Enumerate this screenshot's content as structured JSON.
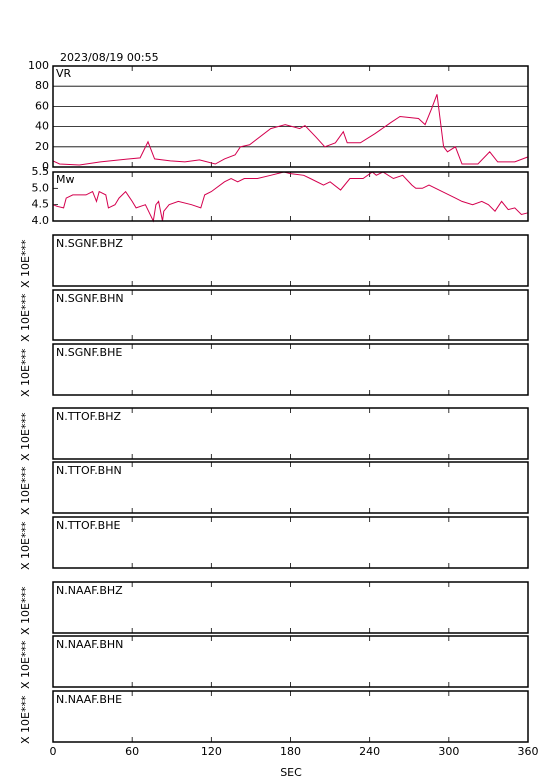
{
  "date": "2023/08/19 00:55",
  "shared_x": {
    "xlabel": "SEC",
    "xlim": [
      0,
      360
    ],
    "xticks": [
      0,
      60,
      120,
      180,
      240,
      300,
      360
    ]
  },
  "chart_data": [
    {
      "type": "line",
      "grid": true,
      "ylim": [
        0,
        100
      ],
      "yticks": [
        0,
        20,
        40,
        60,
        80,
        100
      ],
      "x": [
        0,
        5,
        20,
        36,
        58,
        66,
        72,
        77,
        89,
        100,
        111,
        123,
        130,
        138,
        142,
        149,
        165,
        176,
        187,
        191,
        199,
        206,
        214,
        220,
        223,
        233,
        244,
        256,
        263,
        277,
        282,
        287,
        291,
        296,
        299,
        305,
        310,
        322,
        331,
        337,
        350,
        360
      ],
      "series": [
        {
          "name": "VR",
          "color": "#d4004e",
          "values": [
            6,
            3,
            2,
            5,
            8,
            9,
            25,
            8,
            6,
            5,
            7,
            3,
            8,
            12,
            20,
            22,
            38,
            42,
            38,
            41,
            30,
            20,
            24,
            35,
            24,
            24,
            33,
            44,
            50,
            48,
            42,
            58,
            72,
            20,
            15,
            20,
            3,
            3,
            15,
            5,
            5,
            10
          ]
        }
      ]
    },
    {
      "type": "line",
      "grid": false,
      "ylim": [
        4,
        5.5
      ],
      "yticks": [
        {
          "value": 4,
          "label": "4.0"
        },
        4.5,
        {
          "value": 5,
          "label": "5.0"
        },
        5.5
      ],
      "x": [
        0,
        3,
        8,
        10,
        15,
        25,
        30,
        33,
        35,
        40,
        42,
        47,
        50,
        55,
        60,
        63,
        70,
        76,
        78,
        80,
        83,
        84,
        88,
        95,
        105,
        112,
        115,
        120,
        130,
        135,
        140,
        145,
        155,
        165,
        175,
        180,
        190,
        195,
        205,
        210,
        218,
        225,
        235,
        242,
        245,
        250,
        258,
        265,
        272,
        275,
        280,
        285,
        295,
        305,
        310,
        318,
        325,
        330,
        335,
        340,
        345,
        350,
        355,
        360
      ],
      "series": [
        {
          "name": "Mw",
          "color": "#d4004e",
          "values": [
            4.5,
            4.45,
            4.4,
            4.7,
            4.8,
            4.8,
            4.9,
            4.6,
            4.9,
            4.8,
            4.4,
            4.5,
            4.7,
            4.9,
            4.6,
            4.4,
            4.5,
            4.0,
            4.5,
            4.6,
            4.0,
            4.3,
            4.5,
            4.6,
            4.5,
            4.4,
            4.8,
            4.9,
            5.2,
            5.3,
            5.2,
            5.3,
            5.3,
            5.4,
            5.5,
            5.45,
            5.4,
            5.3,
            5.1,
            5.2,
            4.95,
            5.3,
            5.3,
            5.5,
            5.4,
            5.5,
            5.3,
            5.4,
            5.1,
            5.0,
            5.0,
            5.1,
            4.9,
            4.7,
            4.6,
            4.5,
            4.6,
            4.5,
            4.3,
            4.6,
            4.35,
            4.4,
            4.2,
            4.25
          ]
        }
      ]
    },
    {
      "type": "waveform",
      "panels": [
        {
          "label": "N.SGNF.BHZ",
          "ylabel": "X 10E***"
        },
        {
          "label": "N.SGNF.BHN",
          "ylabel": "X 10E***"
        },
        {
          "label": "N.SGNF.BHE",
          "ylabel": "X 10E***"
        },
        {
          "label": "N.TTOF.BHZ",
          "ylabel": "X 10E***"
        },
        {
          "label": "N.TTOF.BHN",
          "ylabel": "X 10E***"
        },
        {
          "label": "N.TTOF.BHE",
          "ylabel": "X 10E***"
        },
        {
          "label": "N.NAAF.BHZ",
          "ylabel": "X 10E***"
        },
        {
          "label": "N.NAAF.BHN",
          "ylabel": "X 10E***"
        },
        {
          "label": "N.NAAF.BHE",
          "ylabel": "X 10E***"
        }
      ]
    }
  ]
}
